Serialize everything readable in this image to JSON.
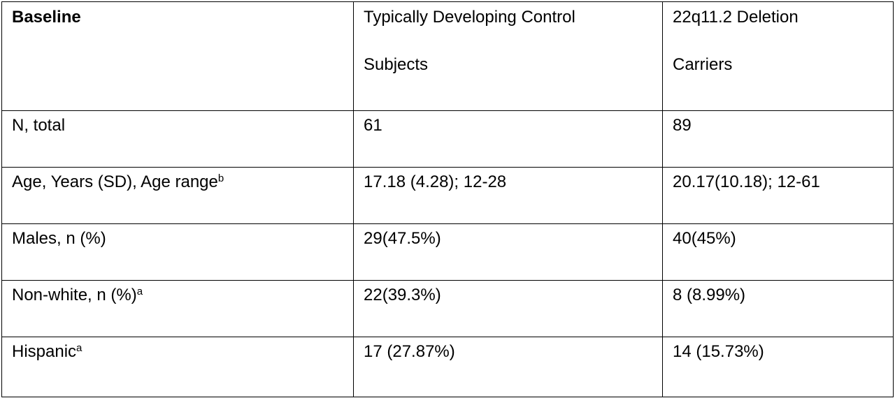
{
  "table": {
    "header": {
      "col1": "Baseline",
      "col2_line1": "Typically Developing Control",
      "col2_line2": "Subjects",
      "col3_line1": "22q11.2 Deletion",
      "col3_line2": "Carriers"
    },
    "rows": [
      {
        "label": "N, total",
        "sup": "",
        "control": "61",
        "carriers": "89"
      },
      {
        "label": "Age, Years (SD), Age range",
        "sup": "b",
        "control": "17.18 (4.28); 12-28",
        "carriers": "20.17(10.18); 12-61"
      },
      {
        "label": "Males, n (%)",
        "sup": "",
        "control": "29(47.5%)",
        "carriers": "40(45%)"
      },
      {
        "label": "Non-white, n (%)",
        "sup": "a",
        "control": "22(39.3%)",
        "carriers": "8 (8.99%)"
      },
      {
        "label": "Hispanic",
        "sup": "a",
        "control": "17 (27.87%)",
        "carriers": "14 (15.73%)"
      }
    ]
  }
}
